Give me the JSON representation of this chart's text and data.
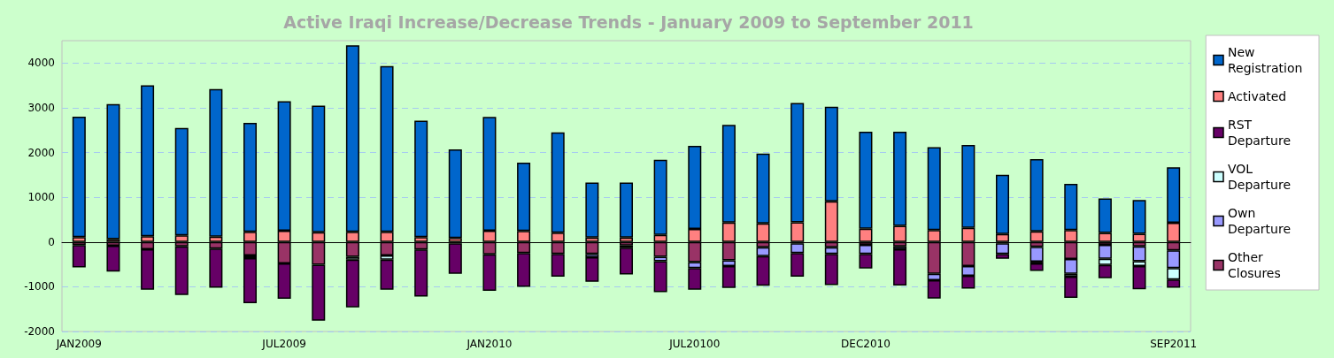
{
  "chart_data": {
    "type": "bar",
    "title": "Active Iraqi Increase/Decrease Trends - January 2009 to September 2011",
    "stacked": true,
    "categories": [
      "JAN2009",
      null,
      null,
      null,
      null,
      null,
      "JUL2009",
      null,
      null,
      null,
      null,
      null,
      "JAN2010",
      null,
      null,
      null,
      null,
      null,
      "JUL20100",
      null,
      null,
      null,
      null,
      "DEC2010",
      null,
      null,
      null,
      null,
      null,
      null,
      null,
      null,
      "SEP2011"
    ],
    "series": [
      {
        "name": "Activated",
        "color": "#ff8080",
        "values": [
          110,
          65,
          130,
          150,
          120,
          230,
          250,
          220,
          230,
          230,
          110,
          90,
          250,
          245,
          210,
          100,
          100,
          160,
          290,
          435,
          415,
          440,
          910,
          295,
          360,
          265,
          315,
          180,
          235,
          265,
          205,
          185,
          430
        ]
      },
      {
        "name": "New Registration",
        "color": "#0066cc",
        "values": [
          2690,
          3015,
          3370,
          2400,
          3300,
          2435,
          2895,
          2830,
          4165,
          3700,
          2600,
          1980,
          2545,
          1530,
          2240,
          1230,
          1230,
          1680,
          1860,
          2185,
          1560,
          2665,
          2115,
          2170,
          2105,
          1855,
          1855,
          1320,
          1620,
          1035,
          770,
          755,
          1240
        ]
      },
      {
        "name": "Other Closures",
        "color": "#993366",
        "values": [
          -70,
          -85,
          -165,
          -100,
          -150,
          -300,
          -480,
          -510,
          -330,
          -300,
          -170,
          -30,
          -275,
          -245,
          -265,
          -265,
          -80,
          -330,
          -450,
          -410,
          -120,
          -30,
          -120,
          -65,
          -100,
          -710,
          -540,
          -30,
          -110,
          -380,
          -65,
          -100,
          -185
        ]
      },
      {
        "name": "Own Departure",
        "color": "#9999ff",
        "values": [
          null,
          null,
          null,
          null,
          null,
          null,
          null,
          null,
          null,
          null,
          null,
          null,
          null,
          null,
          null,
          -75,
          -50,
          -100,
          -130,
          -130,
          -195,
          -215,
          -145,
          -200,
          -65,
          -145,
          -215,
          -235,
          -330,
          -330,
          -310,
          -330,
          -395
        ]
      },
      {
        "name": "VOL Departure",
        "color": "#ccffff",
        "values": [
          null,
          null,
          null,
          null,
          null,
          -60,
          null,
          null,
          -65,
          -95,
          null,
          null,
          null,
          null,
          null,
          null,
          null,
          null,
          null,
          null,
          null,
          null,
          null,
          null,
          null,
          null,
          null,
          null,
          -40,
          -65,
          -140,
          -110,
          -260
        ]
      },
      {
        "name": "RST Departure",
        "color": "#660066",
        "values": [
          -500,
          -575,
          -900,
          -1085,
          -870,
          -1010,
          -790,
          -1250,
          -1065,
          -670,
          -1050,
          -680,
          -815,
          -755,
          -510,
          -550,
          -595,
          -690,
          -485,
          -485,
          -665,
          -530,
          -700,
          -325,
          -810,
          -410,
          -285,
          -110,
          -165,
          -475,
          -295,
          -515,
          -180
        ]
      }
    ],
    "ylim": [
      -2000,
      4500
    ],
    "yticks": [
      -2000,
      -1000,
      0,
      1000,
      2000,
      3000,
      4000
    ],
    "grid": "y",
    "legend": "right"
  }
}
